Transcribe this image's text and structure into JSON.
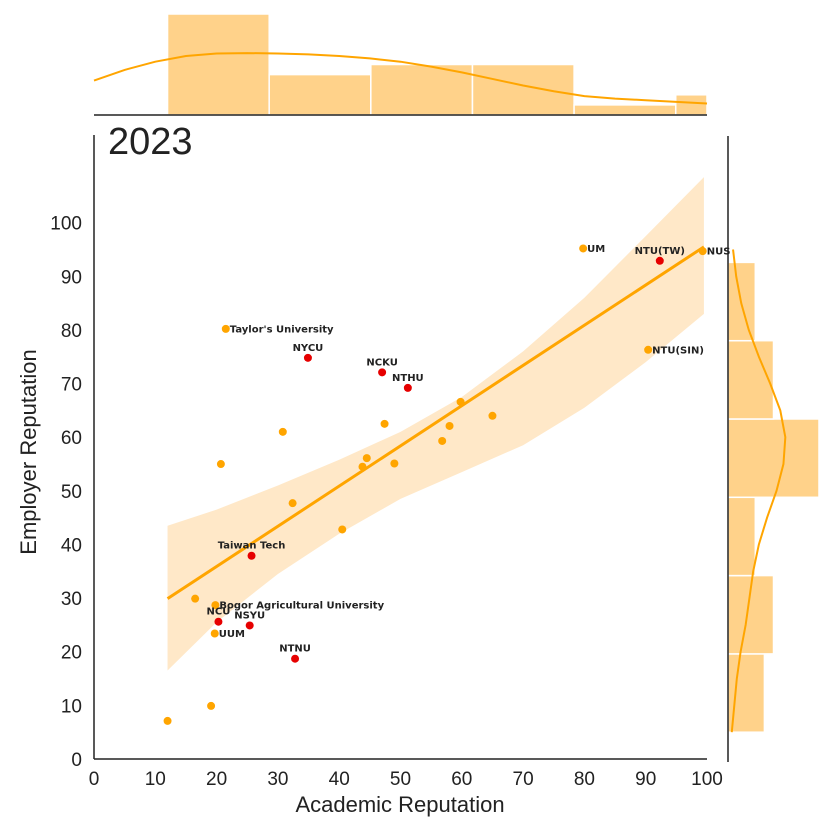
{
  "colors": {
    "accent": "#ffa500",
    "highlight": "#e60000",
    "hist_fill": "#ffd28a",
    "band_fill": "#ffe8c8",
    "axis": "#222222"
  },
  "chart_data": {
    "type": "scatter",
    "title": "2023",
    "xlabel": "Academic Reputation",
    "ylabel": "Employer Reputation",
    "xlim": [
      0,
      100
    ],
    "ylim": [
      0,
      110
    ],
    "xticks": [
      0,
      10,
      20,
      30,
      40,
      50,
      60,
      70,
      80,
      90,
      100
    ],
    "yticks": [
      0,
      10,
      20,
      30,
      40,
      50,
      60,
      70,
      80,
      90,
      100
    ],
    "grid": false,
    "points": [
      {
        "x": 79.8,
        "y": 95.2,
        "label": "UM",
        "highlight": false
      },
      {
        "x": 92.3,
        "y": 92.9,
        "label": "NTU(TW)",
        "highlight": true
      },
      {
        "x": 99.3,
        "y": 94.7,
        "label": "NUS",
        "highlight": false
      },
      {
        "x": 21.5,
        "y": 80.2,
        "label": "Taylor's University",
        "highlight": false
      },
      {
        "x": 34.9,
        "y": 74.8,
        "label": "NYCU",
        "highlight": true
      },
      {
        "x": 47.0,
        "y": 72.1,
        "label": "NCKU",
        "highlight": true
      },
      {
        "x": 51.2,
        "y": 69.2,
        "label": "NTHU",
        "highlight": true
      },
      {
        "x": 90.4,
        "y": 76.3,
        "label": "NTU(SIN)",
        "highlight": false
      },
      {
        "x": 59.8,
        "y": 66.6,
        "label": "",
        "highlight": false
      },
      {
        "x": 65.0,
        "y": 64.0,
        "label": "",
        "highlight": false
      },
      {
        "x": 47.4,
        "y": 62.5,
        "label": "",
        "highlight": false
      },
      {
        "x": 58.0,
        "y": 62.1,
        "label": "",
        "highlight": false
      },
      {
        "x": 30.8,
        "y": 61.0,
        "label": "",
        "highlight": false
      },
      {
        "x": 56.8,
        "y": 59.3,
        "label": "",
        "highlight": false
      },
      {
        "x": 44.5,
        "y": 56.1,
        "label": "",
        "highlight": false
      },
      {
        "x": 49.0,
        "y": 55.1,
        "label": "",
        "highlight": false
      },
      {
        "x": 20.7,
        "y": 55.0,
        "label": "",
        "highlight": false
      },
      {
        "x": 43.8,
        "y": 54.5,
        "label": "",
        "highlight": false
      },
      {
        "x": 32.4,
        "y": 47.7,
        "label": "",
        "highlight": false
      },
      {
        "x": 40.5,
        "y": 42.8,
        "label": "",
        "highlight": false
      },
      {
        "x": 25.7,
        "y": 37.9,
        "label": "Taiwan Tech",
        "highlight": true
      },
      {
        "x": 16.5,
        "y": 29.9,
        "label": "",
        "highlight": false
      },
      {
        "x": 19.8,
        "y": 28.7,
        "label": "Bogor Agricultural University",
        "highlight": false
      },
      {
        "x": 20.3,
        "y": 25.6,
        "label": "NCU",
        "highlight": true
      },
      {
        "x": 25.4,
        "y": 24.9,
        "label": "NSYU",
        "highlight": true
      },
      {
        "x": 19.7,
        "y": 23.4,
        "label": "UUM",
        "highlight": false
      },
      {
        "x": 32.8,
        "y": 18.7,
        "label": "NTNU",
        "highlight": true
      },
      {
        "x": 19.1,
        "y": 9.9,
        "label": "",
        "highlight": false
      },
      {
        "x": 12.0,
        "y": 7.1,
        "label": "",
        "highlight": false
      }
    ],
    "regression": {
      "x": [
        12,
        99.5
      ],
      "y": [
        29.9,
        95.5
      ]
    },
    "confidence_band": {
      "x": [
        12,
        20,
        30,
        40,
        50,
        60,
        70,
        80,
        90,
        99.5
      ],
      "upper": [
        43.5,
        46.5,
        51.0,
        55.8,
        61.0,
        67.5,
        76.0,
        86.0,
        97.5,
        108.5
      ],
      "lower": [
        16.5,
        25.5,
        34.5,
        42.0,
        48.5,
        53.5,
        58.5,
        65.5,
        74.0,
        83.0
      ]
    },
    "x_histogram": {
      "bin_edges": [
        12.0,
        28.58,
        45.16,
        61.74,
        78.32,
        94.9,
        111.48
      ],
      "counts": [
        10,
        4,
        5,
        5,
        1,
        2
      ],
      "kde_x": [
        0,
        5,
        10,
        15,
        20,
        25,
        30,
        35,
        40,
        45,
        50,
        55,
        60,
        65,
        70,
        75,
        80,
        85,
        90,
        95,
        100
      ],
      "kde_y": [
        0.42,
        0.55,
        0.65,
        0.72,
        0.75,
        0.755,
        0.75,
        0.74,
        0.72,
        0.69,
        0.65,
        0.59,
        0.52,
        0.44,
        0.36,
        0.29,
        0.23,
        0.2,
        0.18,
        0.16,
        0.14
      ]
    },
    "y_histogram": {
      "bin_edges": [
        5.0,
        19.6,
        34.2,
        48.8,
        63.4,
        78.0,
        92.6
      ],
      "counts": [
        4,
        5,
        3,
        10,
        5,
        3
      ],
      "kde_y": [
        5,
        10,
        15,
        20,
        25,
        30,
        35,
        40,
        45,
        50,
        55,
        60,
        65,
        70,
        75,
        80,
        85,
        90,
        95
      ],
      "kde_x": [
        0.06,
        0.1,
        0.14,
        0.2,
        0.28,
        0.34,
        0.4,
        0.49,
        0.62,
        0.77,
        0.88,
        0.91,
        0.83,
        0.67,
        0.49,
        0.33,
        0.21,
        0.13,
        0.08
      ]
    }
  }
}
